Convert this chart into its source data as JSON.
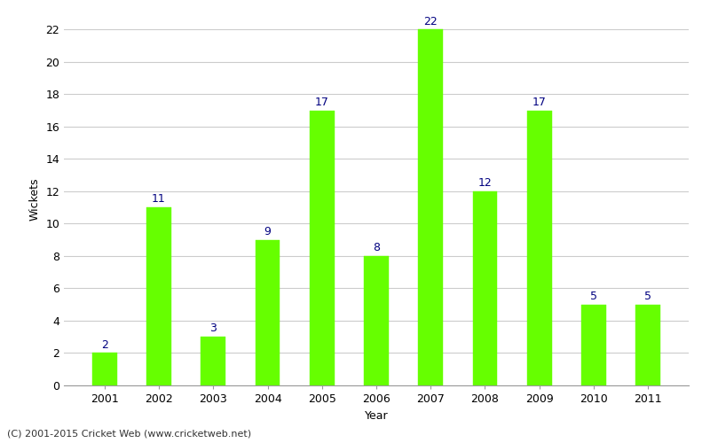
{
  "years": [
    2001,
    2002,
    2003,
    2004,
    2005,
    2006,
    2007,
    2008,
    2009,
    2010,
    2011
  ],
  "wickets": [
    2,
    11,
    3,
    9,
    17,
    8,
    22,
    12,
    17,
    5,
    5
  ],
  "bar_color": "#66ff00",
  "bar_edge_color": "#66ff00",
  "label_color": "#000080",
  "xlabel": "Year",
  "ylabel": "Wickets",
  "ylim": [
    0,
    23
  ],
  "yticks": [
    0,
    2,
    4,
    6,
    8,
    10,
    12,
    14,
    16,
    18,
    20,
    22
  ],
  "footer": "(C) 2001-2015 Cricket Web (www.cricketweb.net)",
  "background_color": "#ffffff",
  "grid_color": "#cccccc",
  "label_fontsize": 9,
  "axis_fontsize": 9,
  "bar_width": 0.45
}
